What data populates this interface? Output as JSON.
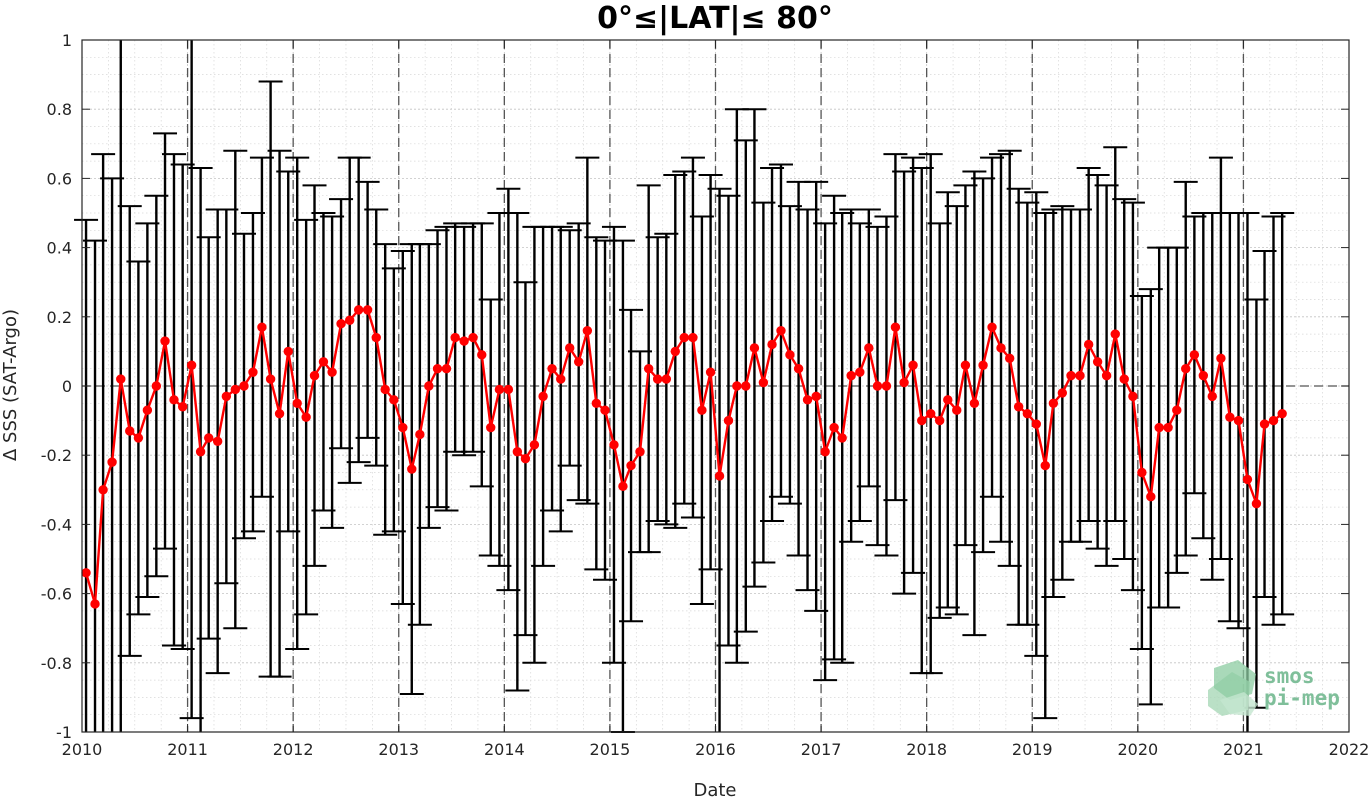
{
  "chart_data": {
    "type": "scatter",
    "title": "0°≤|LAT|≤ 80°",
    "xlabel": "Date",
    "ylabel": "Δ SSS (SAT-Argo)",
    "xlim": [
      "2010-01-01",
      "2022-01-01"
    ],
    "ylim": [
      -1,
      1
    ],
    "x_ticks": [
      "2010",
      "2011",
      "2012",
      "2013",
      "2014",
      "2015",
      "2016",
      "2017",
      "2018",
      "2019",
      "2020",
      "2021",
      "2022"
    ],
    "y_ticks": [
      "-1",
      "-0.8",
      "-0.6",
      "-0.4",
      "-0.2",
      "0",
      "0.2",
      "0.4",
      "0.6",
      "0.8",
      "1"
    ],
    "y_tick_values": [
      -1,
      -0.8,
      -0.6,
      -0.4,
      -0.2,
      0,
      0.2,
      0.4,
      0.6,
      0.8,
      1
    ],
    "grid": true,
    "minor_grid": true,
    "zero_line": true,
    "year_lines": true,
    "series": [
      {
        "color": "#ff0000",
        "errorbar_color": "#000000",
        "x": [
          "2010-01-15",
          "2010-02-15",
          "2010-03-15",
          "2010-04-15",
          "2010-05-15",
          "2010-06-15",
          "2010-07-15",
          "2010-08-15",
          "2010-09-15",
          "2010-10-15",
          "2010-11-15",
          "2010-12-15",
          "2011-01-15",
          "2011-02-15",
          "2011-03-15",
          "2011-04-15",
          "2011-05-15",
          "2011-06-15",
          "2011-07-15",
          "2011-08-15",
          "2011-09-15",
          "2011-10-15",
          "2011-11-15",
          "2011-12-15",
          "2012-01-15",
          "2012-02-15",
          "2012-03-15",
          "2012-04-15",
          "2012-05-15",
          "2012-06-15",
          "2012-07-15",
          "2012-08-15",
          "2012-09-15",
          "2012-10-15",
          "2012-11-15",
          "2012-12-15",
          "2013-01-15",
          "2013-02-15",
          "2013-03-15",
          "2013-04-15",
          "2013-05-15",
          "2013-06-15",
          "2013-07-15",
          "2013-08-15",
          "2013-09-15",
          "2013-10-15",
          "2013-11-15",
          "2013-12-15",
          "2014-01-15",
          "2014-02-15",
          "2014-03-15",
          "2014-04-15",
          "2014-05-15",
          "2014-06-15",
          "2014-07-15",
          "2014-08-15",
          "2014-09-15",
          "2014-10-15",
          "2014-11-15",
          "2014-12-15",
          "2015-01-15",
          "2015-02-15",
          "2015-03-15",
          "2015-04-15",
          "2015-05-15",
          "2015-06-15",
          "2015-07-15",
          "2015-08-15",
          "2015-09-15",
          "2015-10-15",
          "2015-11-15",
          "2015-12-15",
          "2016-01-15",
          "2016-02-15",
          "2016-03-15",
          "2016-04-15",
          "2016-05-15",
          "2016-06-15",
          "2016-07-15",
          "2016-08-15",
          "2016-09-15",
          "2016-10-15",
          "2016-11-15",
          "2016-12-15",
          "2017-01-15",
          "2017-02-15",
          "2017-03-15",
          "2017-04-15",
          "2017-05-15",
          "2017-06-15",
          "2017-07-15",
          "2017-08-15",
          "2017-09-15",
          "2017-10-15",
          "2017-11-15",
          "2017-12-15",
          "2018-01-15",
          "2018-02-15",
          "2018-03-15",
          "2018-04-15",
          "2018-05-15",
          "2018-06-15",
          "2018-07-15",
          "2018-08-15",
          "2018-09-15",
          "2018-10-15",
          "2018-11-15",
          "2018-12-15",
          "2019-01-15",
          "2019-02-15",
          "2019-03-15",
          "2019-04-15",
          "2019-05-15",
          "2019-06-15",
          "2019-07-15",
          "2019-08-15",
          "2019-09-15",
          "2019-10-15",
          "2019-11-15",
          "2019-12-15",
          "2020-01-15",
          "2020-02-15",
          "2020-03-15",
          "2020-04-15",
          "2020-05-15",
          "2020-06-15",
          "2020-07-15",
          "2020-08-15",
          "2020-09-15",
          "2020-10-15",
          "2020-11-15",
          "2020-12-15",
          "2021-01-15",
          "2021-02-15",
          "2021-03-15",
          "2021-04-15",
          "2021-05-15"
        ],
        "y": [
          -0.54,
          -0.63,
          -0.3,
          -0.22,
          0.02,
          -0.13,
          -0.15,
          -0.07,
          0.0,
          0.13,
          -0.04,
          -0.06,
          0.06,
          -0.19,
          -0.15,
          -0.16,
          -0.03,
          -0.01,
          0.0,
          0.04,
          0.17,
          0.02,
          -0.08,
          0.1,
          -0.05,
          -0.09,
          0.03,
          0.07,
          0.04,
          0.18,
          0.19,
          0.22,
          0.22,
          0.14,
          -0.01,
          -0.04,
          -0.12,
          -0.24,
          -0.14,
          0.0,
          0.05,
          0.05,
          0.14,
          0.13,
          0.14,
          0.09,
          -0.12,
          -0.01,
          -0.01,
          -0.19,
          -0.21,
          -0.17,
          -0.03,
          0.05,
          0.02,
          0.11,
          0.07,
          0.16,
          -0.05,
          -0.07,
          -0.17,
          -0.29,
          -0.23,
          -0.19,
          0.05,
          0.02,
          0.02,
          0.1,
          0.14,
          0.14,
          -0.07,
          0.04,
          -0.26,
          -0.1,
          0.0,
          0.0,
          0.11,
          0.01,
          0.12,
          0.16,
          0.09,
          0.05,
          -0.04,
          -0.03,
          -0.19,
          -0.12,
          -0.15,
          0.03,
          0.04,
          0.11,
          0.0,
          0.0,
          0.17,
          0.01,
          0.06,
          -0.1,
          -0.08,
          -0.1,
          -0.04,
          -0.07,
          0.06,
          -0.05,
          0.06,
          0.17,
          0.11,
          0.08,
          -0.06,
          -0.08,
          -0.11,
          -0.23,
          -0.05,
          -0.02,
          0.03,
          0.03,
          0.12,
          0.07,
          0.03,
          0.15,
          0.02,
          -0.03,
          -0.25,
          -0.32,
          -0.12,
          -0.12,
          -0.07,
          0.05,
          0.09,
          0.03,
          -0.03,
          0.08,
          -0.09,
          -0.1,
          -0.27,
          -0.34,
          -0.11,
          -0.1,
          -0.08
        ],
        "yerr": [
          1.02,
          1.05,
          0.97,
          0.82,
          1.18,
          0.65,
          0.51,
          0.54,
          0.55,
          0.6,
          0.71,
          0.7,
          1.02,
          0.82,
          0.58,
          0.67,
          0.54,
          0.69,
          0.44,
          0.46,
          0.49,
          0.86,
          0.76,
          0.52,
          0.71,
          0.57,
          0.55,
          0.43,
          0.45,
          0.36,
          0.47,
          0.44,
          0.37,
          0.37,
          0.42,
          0.38,
          0.51,
          0.65,
          0.55,
          0.41,
          0.4,
          0.41,
          0.33,
          0.33,
          0.33,
          0.38,
          0.37,
          0.51,
          0.58,
          0.69,
          0.51,
          0.63,
          0.49,
          0.41,
          0.44,
          0.34,
          0.4,
          0.5,
          0.48,
          0.49,
          0.63,
          0.71,
          0.45,
          0.29,
          0.53,
          0.41,
          0.42,
          0.51,
          0.48,
          0.52,
          0.56,
          0.57,
          0.83,
          0.65,
          0.8,
          0.71,
          0.69,
          0.52,
          0.51,
          0.48,
          0.43,
          0.54,
          0.55,
          0.62,
          0.66,
          0.67,
          0.65,
          0.48,
          0.43,
          0.4,
          0.46,
          0.49,
          0.5,
          0.61,
          0.6,
          0.73,
          0.75,
          0.57,
          0.6,
          0.59,
          0.52,
          0.67,
          0.54,
          0.49,
          0.56,
          0.6,
          0.63,
          0.61,
          0.67,
          0.73,
          0.56,
          0.54,
          0.48,
          0.48,
          0.51,
          0.54,
          0.55,
          0.54,
          0.52,
          0.56,
          0.51,
          0.6,
          0.52,
          0.52,
          0.47,
          0.54,
          0.4,
          0.47,
          0.53,
          0.58,
          0.59,
          0.6,
          0.77,
          0.59,
          0.5,
          0.59,
          0.58
        ]
      }
    ]
  }
}
